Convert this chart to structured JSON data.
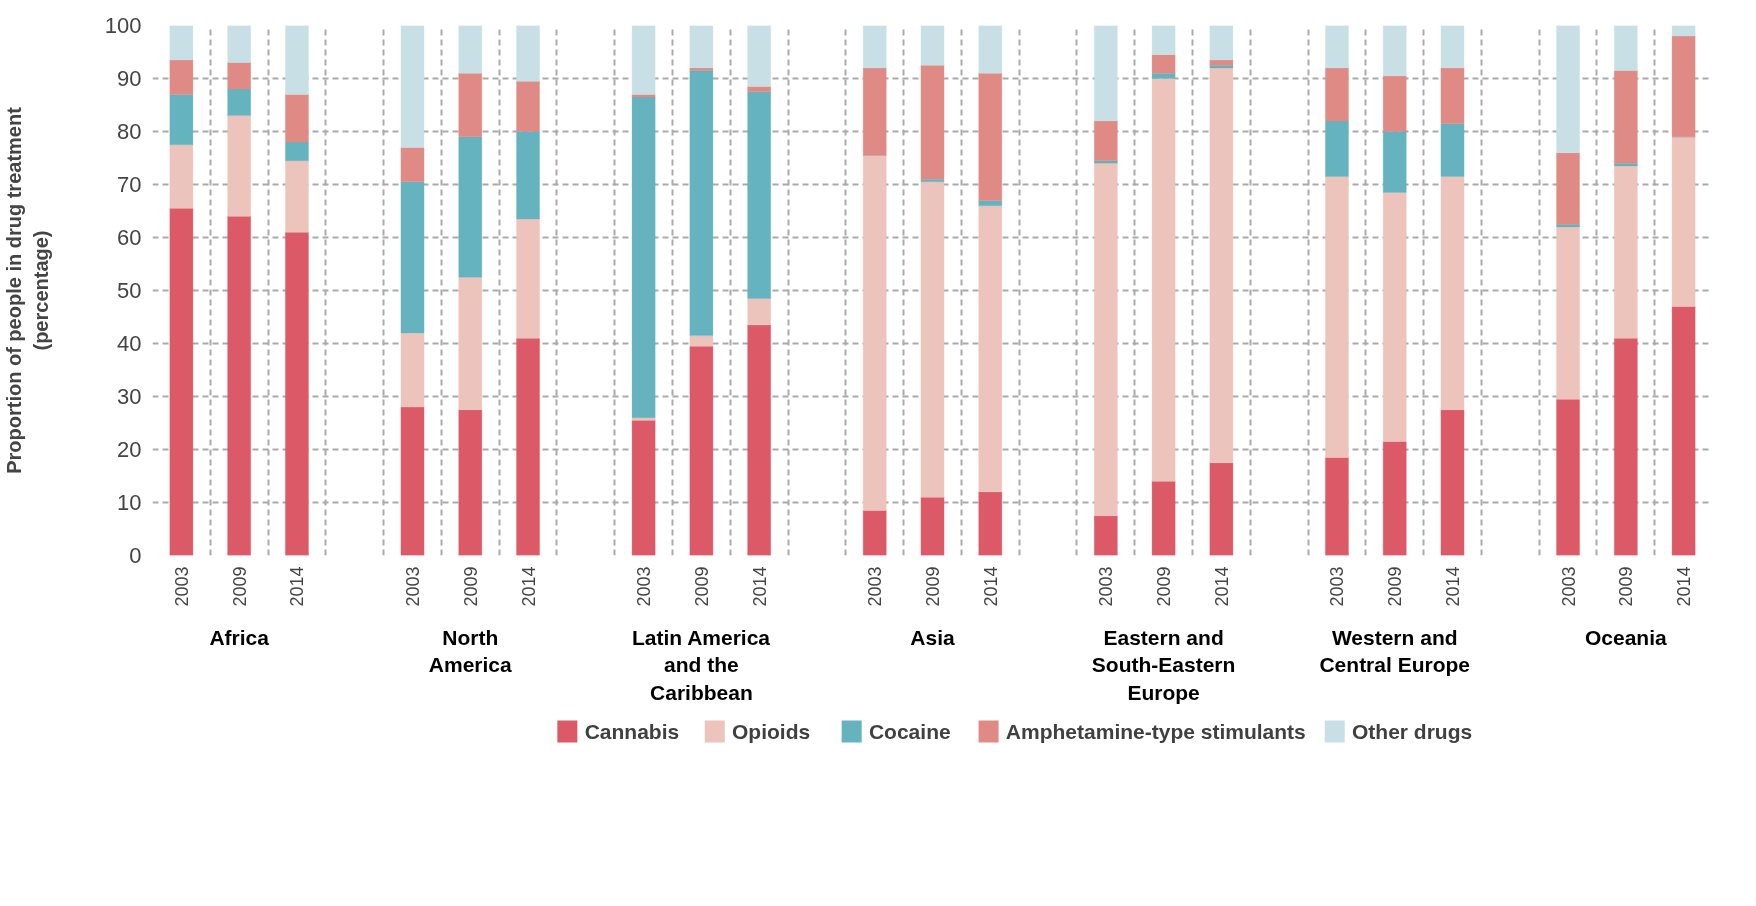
{
  "chart_data": {
    "type": "bar",
    "stacked": true,
    "ylabel": "Proportion of people in drug treatment\n(percentage)",
    "categories": [
      "2003",
      "2009",
      "2014",
      null,
      "2003",
      "2009",
      "2014",
      null,
      "2003",
      "2009",
      "2014",
      null,
      "2003",
      "2009",
      "2014",
      null,
      "2003",
      "2009",
      "2014",
      null,
      "2003",
      "2009",
      "2014",
      null,
      "2003",
      "2009",
      "2014"
    ],
    "series": [
      {
        "name": "Cannabis",
        "color": "#dc5a68",
        "values": [
          65.5,
          64,
          61,
          null,
          28,
          27.5,
          41,
          null,
          25.5,
          39.5,
          43.5,
          null,
          8.5,
          11,
          12,
          null,
          7.5,
          14,
          17.5,
          null,
          18.5,
          21.5,
          27.5,
          null,
          29.5,
          41,
          47
        ]
      },
      {
        "name": "Opioids",
        "color": "#edc4bb",
        "values": [
          12,
          19,
          13.5,
          null,
          14,
          25,
          22.5,
          null,
          0.5,
          2,
          5,
          null,
          67,
          59.5,
          54,
          null,
          66.5,
          76,
          74.5,
          null,
          53,
          47,
          44,
          null,
          32.5,
          32.5,
          32
        ]
      },
      {
        "name": "Cocaine",
        "color": "#64b3bf",
        "values": [
          9.5,
          5,
          3.5,
          null,
          28.5,
          26.5,
          16.5,
          null,
          60.5,
          50,
          39,
          null,
          0,
          0.5,
          1,
          null,
          0.5,
          1,
          0.5,
          null,
          10.5,
          11.5,
          10,
          null,
          0.5,
          0.5,
          0
        ]
      },
      {
        "name": "Amphetamine-type stimulants",
        "color": "#e08a86",
        "values": [
          6.5,
          5,
          9,
          null,
          6.5,
          12,
          9.5,
          null,
          0.5,
          0.5,
          1,
          null,
          16.5,
          21.5,
          24,
          null,
          7.5,
          3.5,
          1,
          null,
          10,
          10.5,
          10.5,
          null,
          13.5,
          17.5,
          19
        ]
      },
      {
        "name": "Other drugs",
        "color": "#c8e0e5",
        "values": [
          6.5,
          7,
          13,
          null,
          23,
          9,
          10.5,
          null,
          13,
          8,
          11.5,
          null,
          8,
          7.5,
          9,
          null,
          18,
          5.5,
          6.5,
          null,
          8,
          9.5,
          8,
          null,
          24,
          8.5,
          2
        ]
      }
    ],
    "annotations": [
      "Africa",
      "North\nAmerica",
      "Latin America\nand the\nCaribbean",
      "Asia",
      "Eastern and\nSouth-Eastern\nEurope",
      "Western and\nCentral Europe",
      "Oceania"
    ],
    "ylim": [
      0,
      100
    ],
    "yticks": [
      0,
      10,
      20,
      30,
      40,
      50,
      60,
      70,
      80,
      90,
      100
    ],
    "grid": true,
    "legend": "bottom"
  }
}
